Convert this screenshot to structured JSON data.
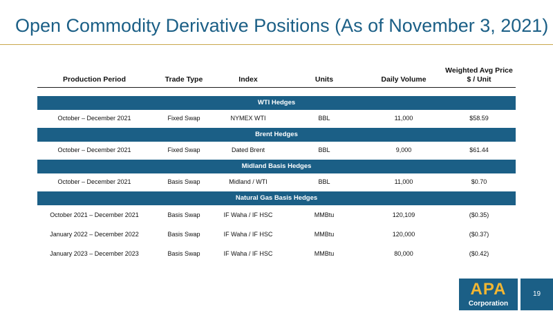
{
  "title": "Open Commodity Derivative Positions (As of November 3, 2021)",
  "headers": [
    "Production Period",
    "Trade Type",
    "Index",
    "Units",
    "Daily Volume",
    "Weighted Avg Price",
    "$ / Unit"
  ],
  "sections": [
    {
      "label": "WTI Hedges",
      "rows": [
        [
          "October  – December 2021",
          "Fixed Swap",
          "NYMEX WTI",
          "BBL",
          "11,000",
          "$58.59"
        ]
      ]
    },
    {
      "label": "Brent Hedges",
      "rows": [
        [
          "October  – December 2021",
          "Fixed Swap",
          "Dated Brent",
          "BBL",
          "9,000",
          "$61.44"
        ]
      ]
    },
    {
      "label": "Midland Basis Hedges",
      "rows": [
        [
          "October  – December 2021",
          "Basis Swap",
          "Midland / WTI",
          "BBL",
          "11,000",
          "$0.70"
        ]
      ]
    },
    {
      "label": "Natural Gas Basis Hedges",
      "rows": [
        [
          "October 2021 – December 2021",
          "Basis Swap",
          "IF Waha / IF HSC",
          "MMBtu",
          "120,109",
          "($0.35)"
        ],
        [
          "January 2022 – December 2022",
          "Basis Swap",
          "IF Waha / IF HSC",
          "MMBtu",
          "120,000",
          "($0.37)"
        ],
        [
          "January 2023 – December 2023",
          "Basis Swap",
          "IF Waha / IF HSC",
          "MMBtu",
          "80,000",
          "($0.42)"
        ]
      ]
    }
  ],
  "logo": {
    "name": "APA",
    "subtitle": "Corporation"
  },
  "page_number": "19",
  "colors": {
    "accent": "#1b5f86",
    "rule": "#c9a64b",
    "logo_text": "#f2b632"
  }
}
